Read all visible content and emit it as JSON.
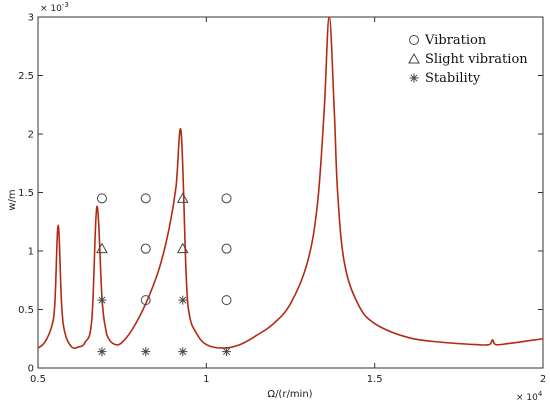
{
  "chart_data": {
    "type": "line",
    "title": "",
    "xlabel": "Ω/(r/min)",
    "ylabel": "w/m",
    "x_exponent_label": "× 10",
    "x_exponent_power": "4",
    "y_exponent_label": "× 10",
    "y_exponent_power": "-3",
    "xlim": [
      0.5,
      2.0
    ],
    "ylim": [
      0,
      3.0
    ],
    "xticks": [
      0.5,
      1.0,
      1.5,
      2.0
    ],
    "xtick_labels": [
      "0.5",
      "1",
      "1.5",
      "2"
    ],
    "yticks": [
      0,
      0.5,
      1.0,
      1.5,
      2.0,
      2.5,
      3.0
    ],
    "ytick_labels": [
      "0",
      "0.5",
      "1",
      "1.5",
      "2",
      "2.5",
      "3"
    ],
    "grid": false,
    "legend_position": "top-right",
    "series": [
      {
        "color": "#b22a14",
        "x": [
          0.5,
          0.52,
          0.54,
          0.55,
          0.56,
          0.57,
          0.58,
          0.6,
          0.62,
          0.64,
          0.66,
          0.675,
          0.69,
          0.7,
          0.71,
          0.73,
          0.75,
          0.78,
          0.82,
          0.86,
          0.89,
          0.91,
          0.925,
          0.94,
          0.95,
          0.97,
          1.0,
          1.05,
          1.1,
          1.15,
          1.2,
          1.25,
          1.3,
          1.33,
          1.35,
          1.365,
          1.38,
          1.39,
          1.41,
          1.45,
          1.5,
          1.6,
          1.7,
          1.8,
          1.84,
          1.85,
          1.86,
          1.9,
          2.0
        ],
        "y": [
          0.17,
          0.22,
          0.35,
          0.55,
          1.22,
          0.55,
          0.3,
          0.18,
          0.18,
          0.22,
          0.42,
          1.38,
          0.6,
          0.35,
          0.25,
          0.2,
          0.22,
          0.33,
          0.55,
          0.85,
          1.2,
          1.55,
          2.02,
          0.8,
          0.45,
          0.3,
          0.2,
          0.17,
          0.2,
          0.28,
          0.38,
          0.55,
          0.9,
          1.4,
          2.2,
          3.0,
          2.2,
          1.5,
          0.9,
          0.55,
          0.38,
          0.26,
          0.22,
          0.2,
          0.2,
          0.24,
          0.2,
          0.21,
          0.25
        ]
      }
    ],
    "marker_points": {
      "x": [
        0.69,
        0.82,
        0.93,
        1.06
      ],
      "rows": [
        {
          "y": 1.45,
          "markers": [
            "circle",
            "circle",
            "triangle",
            "circle"
          ]
        },
        {
          "y": 1.02,
          "markers": [
            "triangle",
            "circle",
            "triangle",
            "circle"
          ]
        },
        {
          "y": 0.58,
          "markers": [
            "star",
            "circle",
            "star",
            "circle"
          ]
        },
        {
          "y": 0.14,
          "markers": [
            "star",
            "star",
            "star",
            "star"
          ]
        }
      ]
    },
    "legend": [
      {
        "marker": "circle",
        "label": "Vibration"
      },
      {
        "marker": "triangle",
        "label": "Slight vibration"
      },
      {
        "marker": "star",
        "label": "Stability"
      }
    ]
  }
}
